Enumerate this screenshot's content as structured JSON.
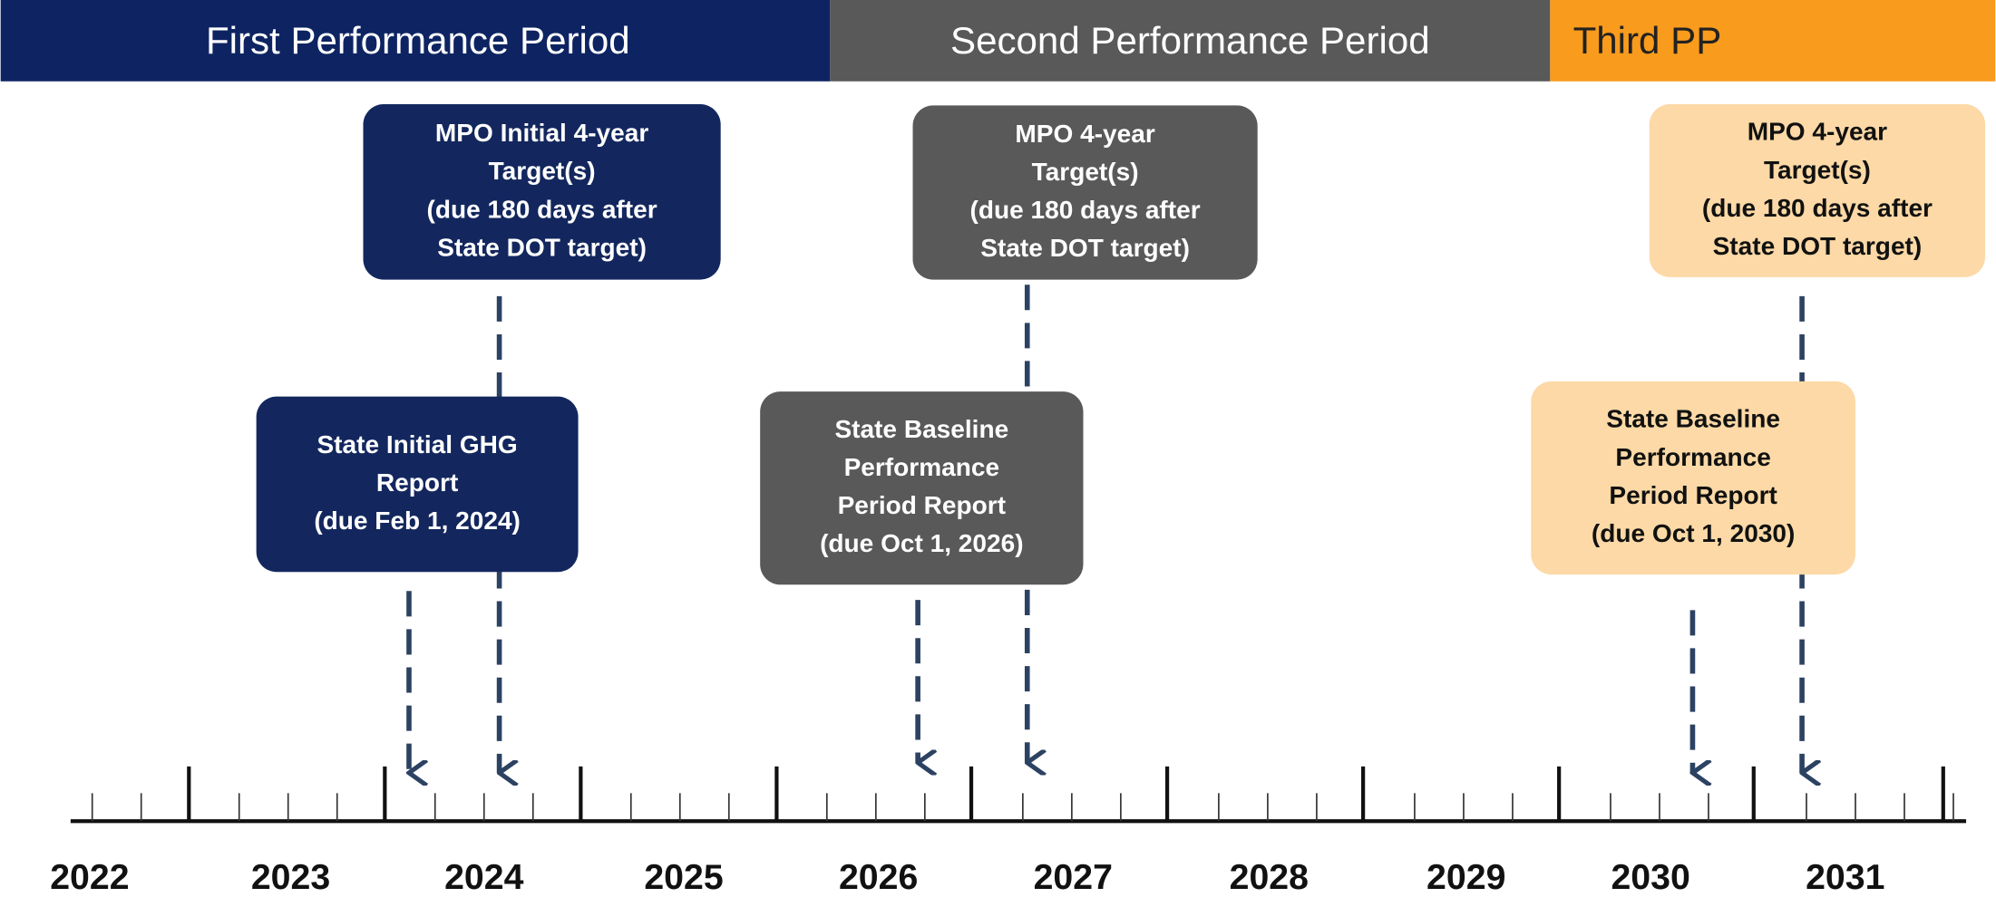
{
  "periods": [
    "First Performance Period",
    "Second Performance Period",
    "Third PP"
  ],
  "boxes": [
    {
      "lines": [
        "MPO Initial 4-year",
        "Target(s)",
        "(due 180 days after",
        "State DOT target)"
      ]
    },
    {
      "lines": [
        "State Initial GHG",
        "Report",
        "(due Feb 1, 2024)"
      ]
    },
    {
      "lines": [
        "MPO 4-year",
        "Target(s)",
        "(due 180 days after",
        "State DOT target)"
      ]
    },
    {
      "lines": [
        "State Baseline",
        "Performance",
        "Period Report",
        "(due Oct 1, 2026)"
      ]
    },
    {
      "lines": [
        "MPO 4-year",
        "Target(s)",
        "(due 180 days after",
        "State DOT target)"
      ]
    },
    {
      "lines": [
        "State Baseline",
        "Performance",
        "Period Report",
        "(due Oct 1, 2030)"
      ]
    }
  ],
  "years": [
    "2022",
    "2023",
    "2024",
    "2025",
    "2026",
    "2027",
    "2028",
    "2029",
    "2030",
    "2031"
  ]
}
